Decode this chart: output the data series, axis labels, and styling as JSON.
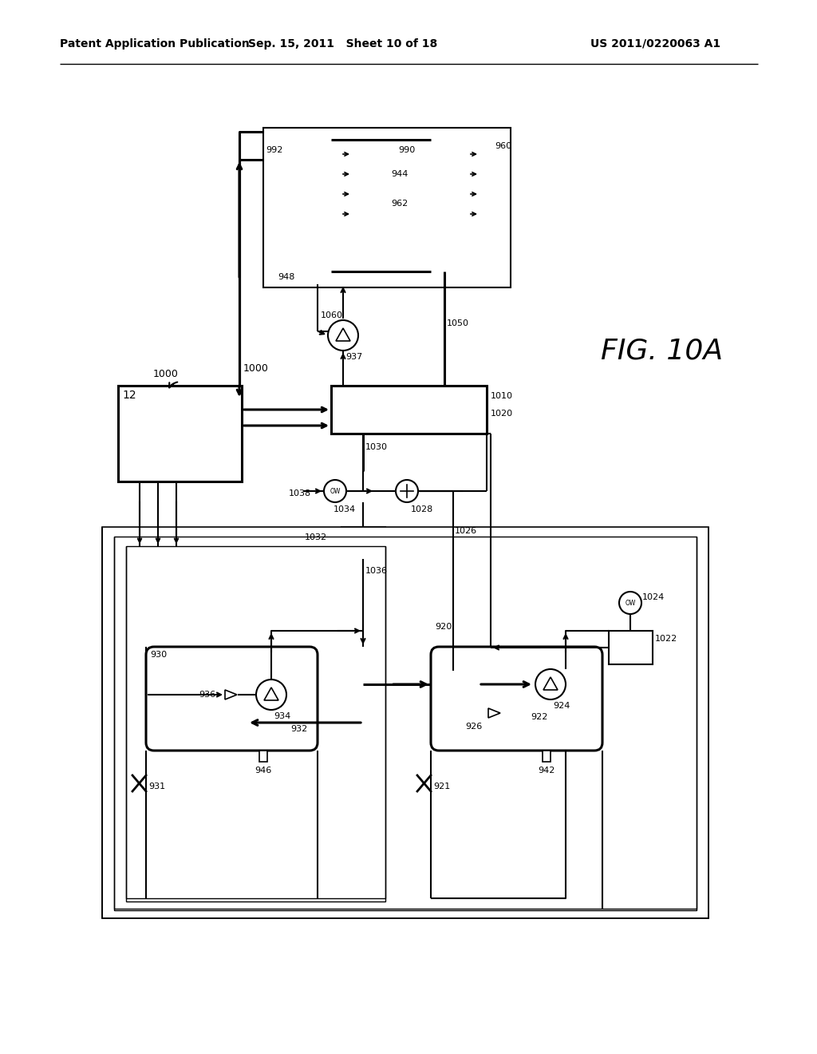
{
  "bg": "#ffffff",
  "lc": "#000000",
  "header_left": "Patent Application Publication",
  "header_mid": "Sep. 15, 2011   Sheet 10 of 18",
  "header_right": "US 2011/0220063 A1"
}
